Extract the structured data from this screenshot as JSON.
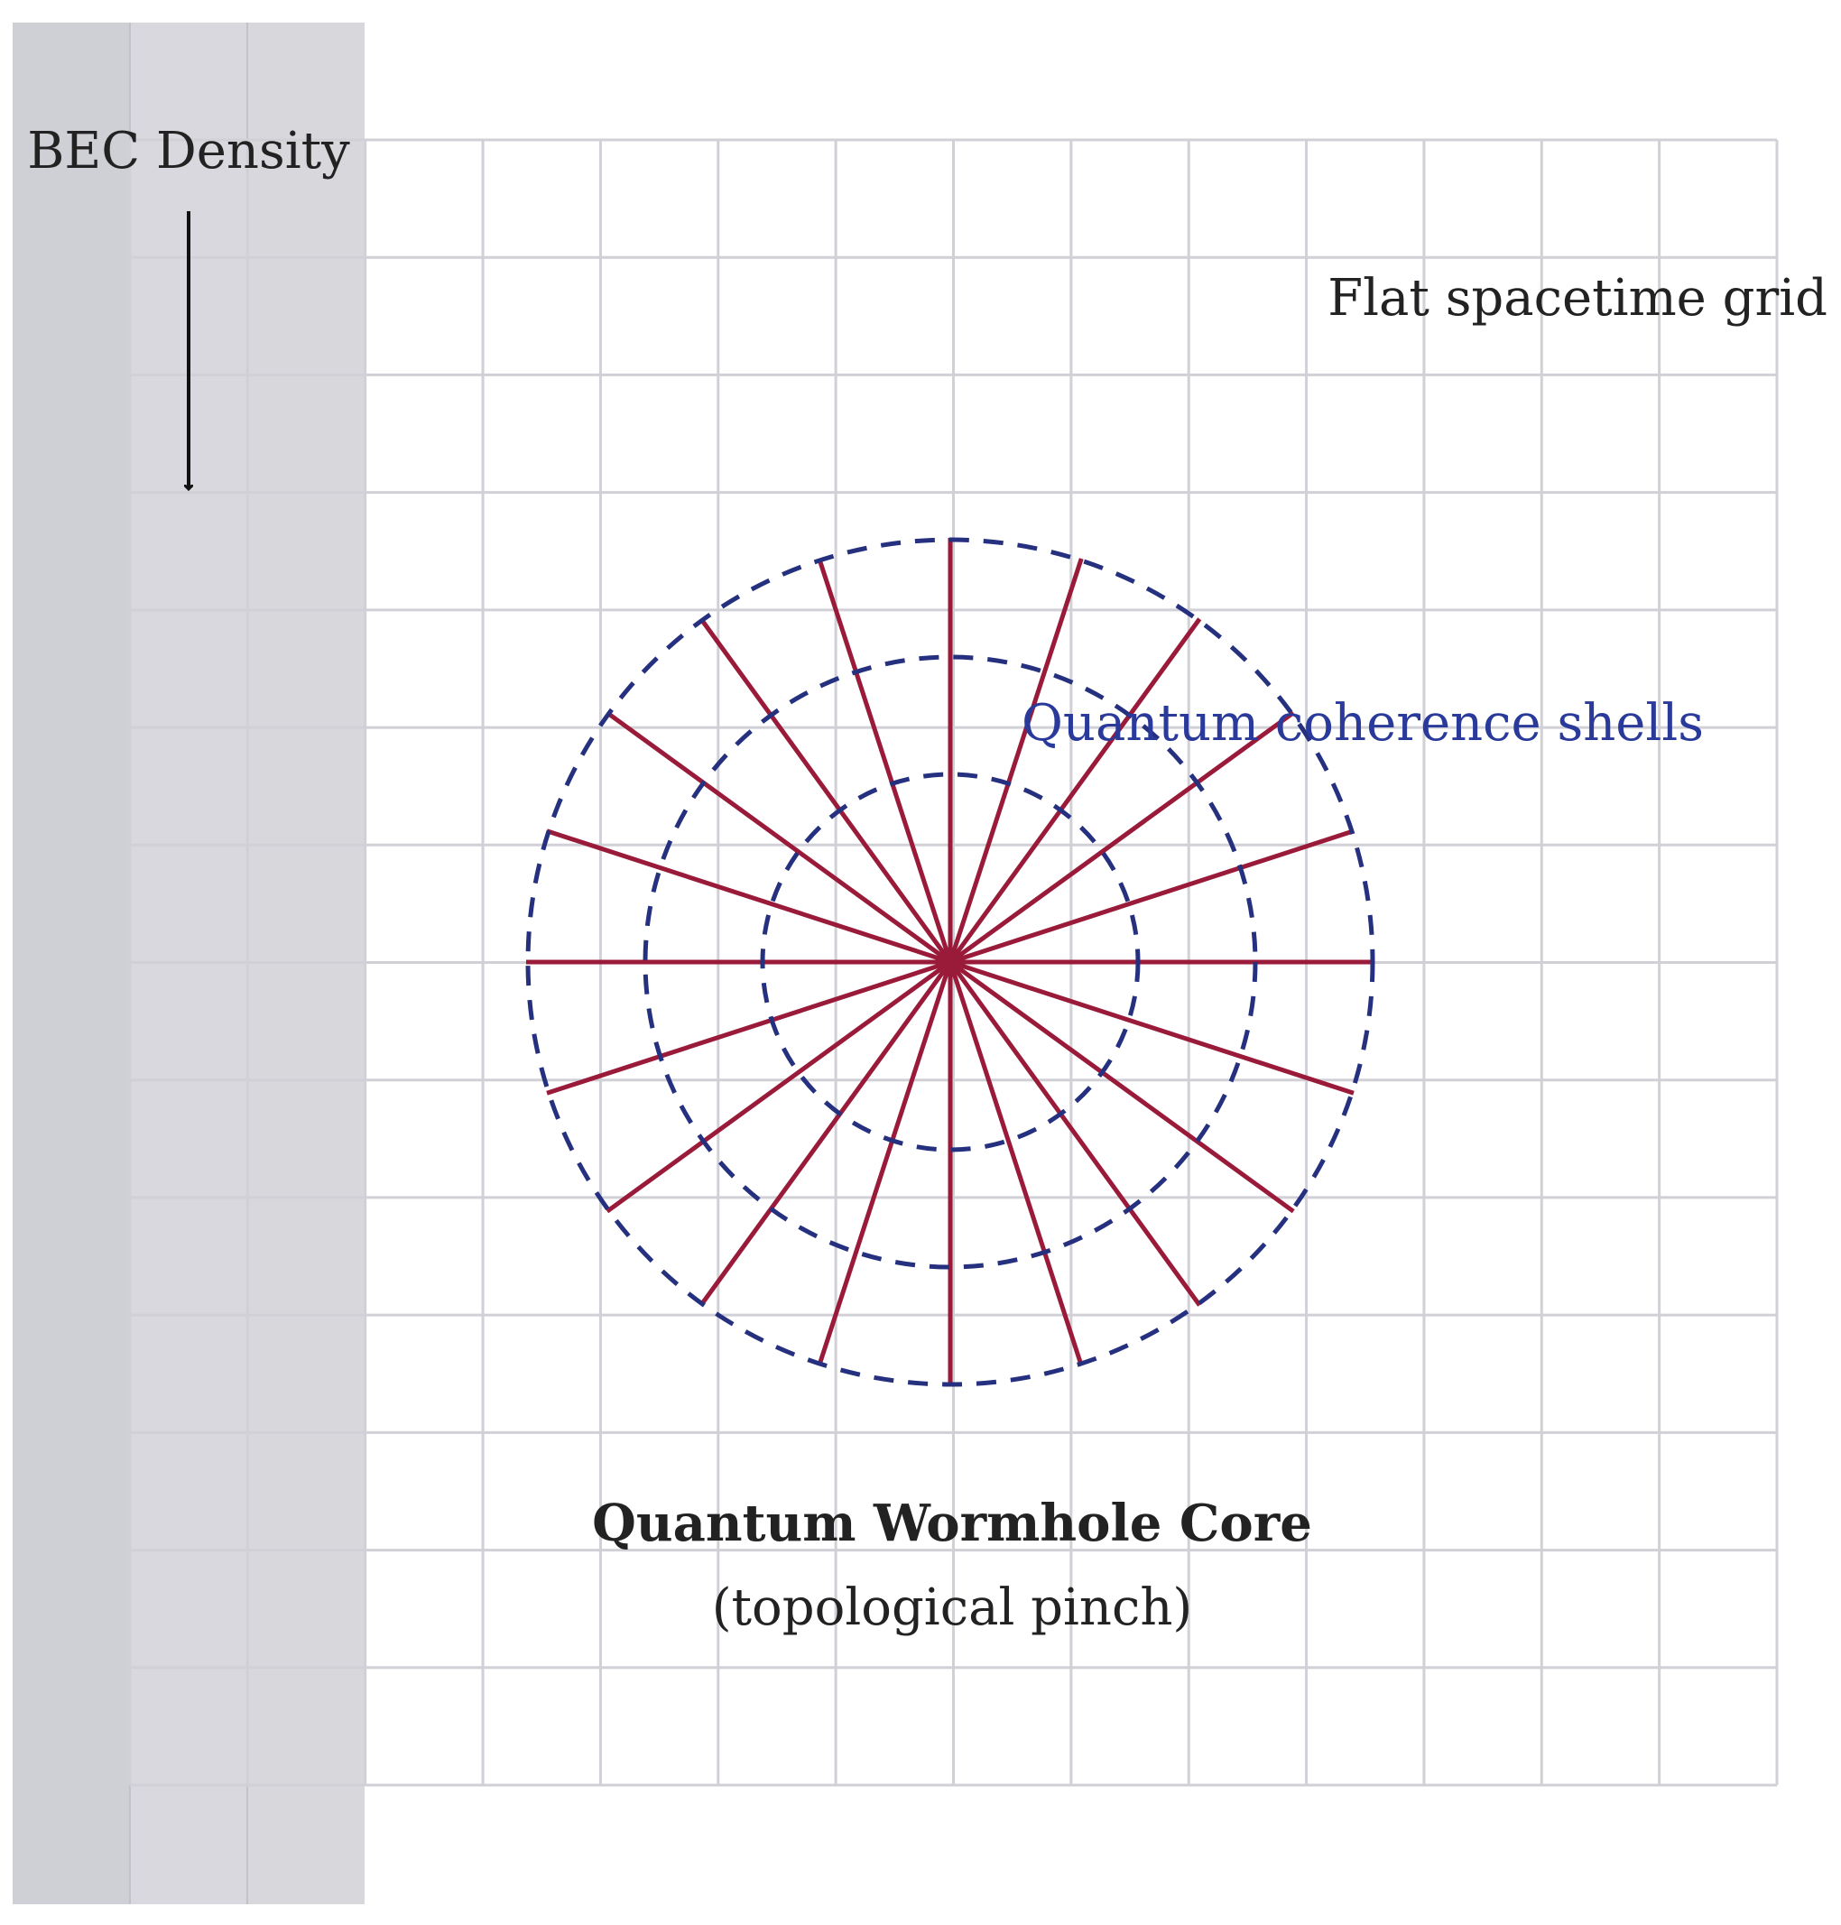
{
  "labels": {
    "density": "BEC Density",
    "flat_grid": "Flat spacetime grid",
    "shells": "Quantum coherence shells",
    "core_title": "Quantum Wormhole Core",
    "core_subtitle": "(topological pinch)"
  },
  "density_bands": {
    "count": 3,
    "colors": [
      "#cfcfd6",
      "#d8d8de",
      "#d8d8dc"
    ]
  },
  "grid": {
    "columns": 14,
    "rows": 14,
    "color": "#d0d0d6"
  },
  "wormhole": {
    "shell_count": 3,
    "ray_count": 20,
    "shell_color": "#25307f",
    "ray_color": "#9a1a3a"
  },
  "colors": {
    "text": "#222222",
    "shell_label": "#2a3a9a",
    "arrow": "#111111"
  }
}
